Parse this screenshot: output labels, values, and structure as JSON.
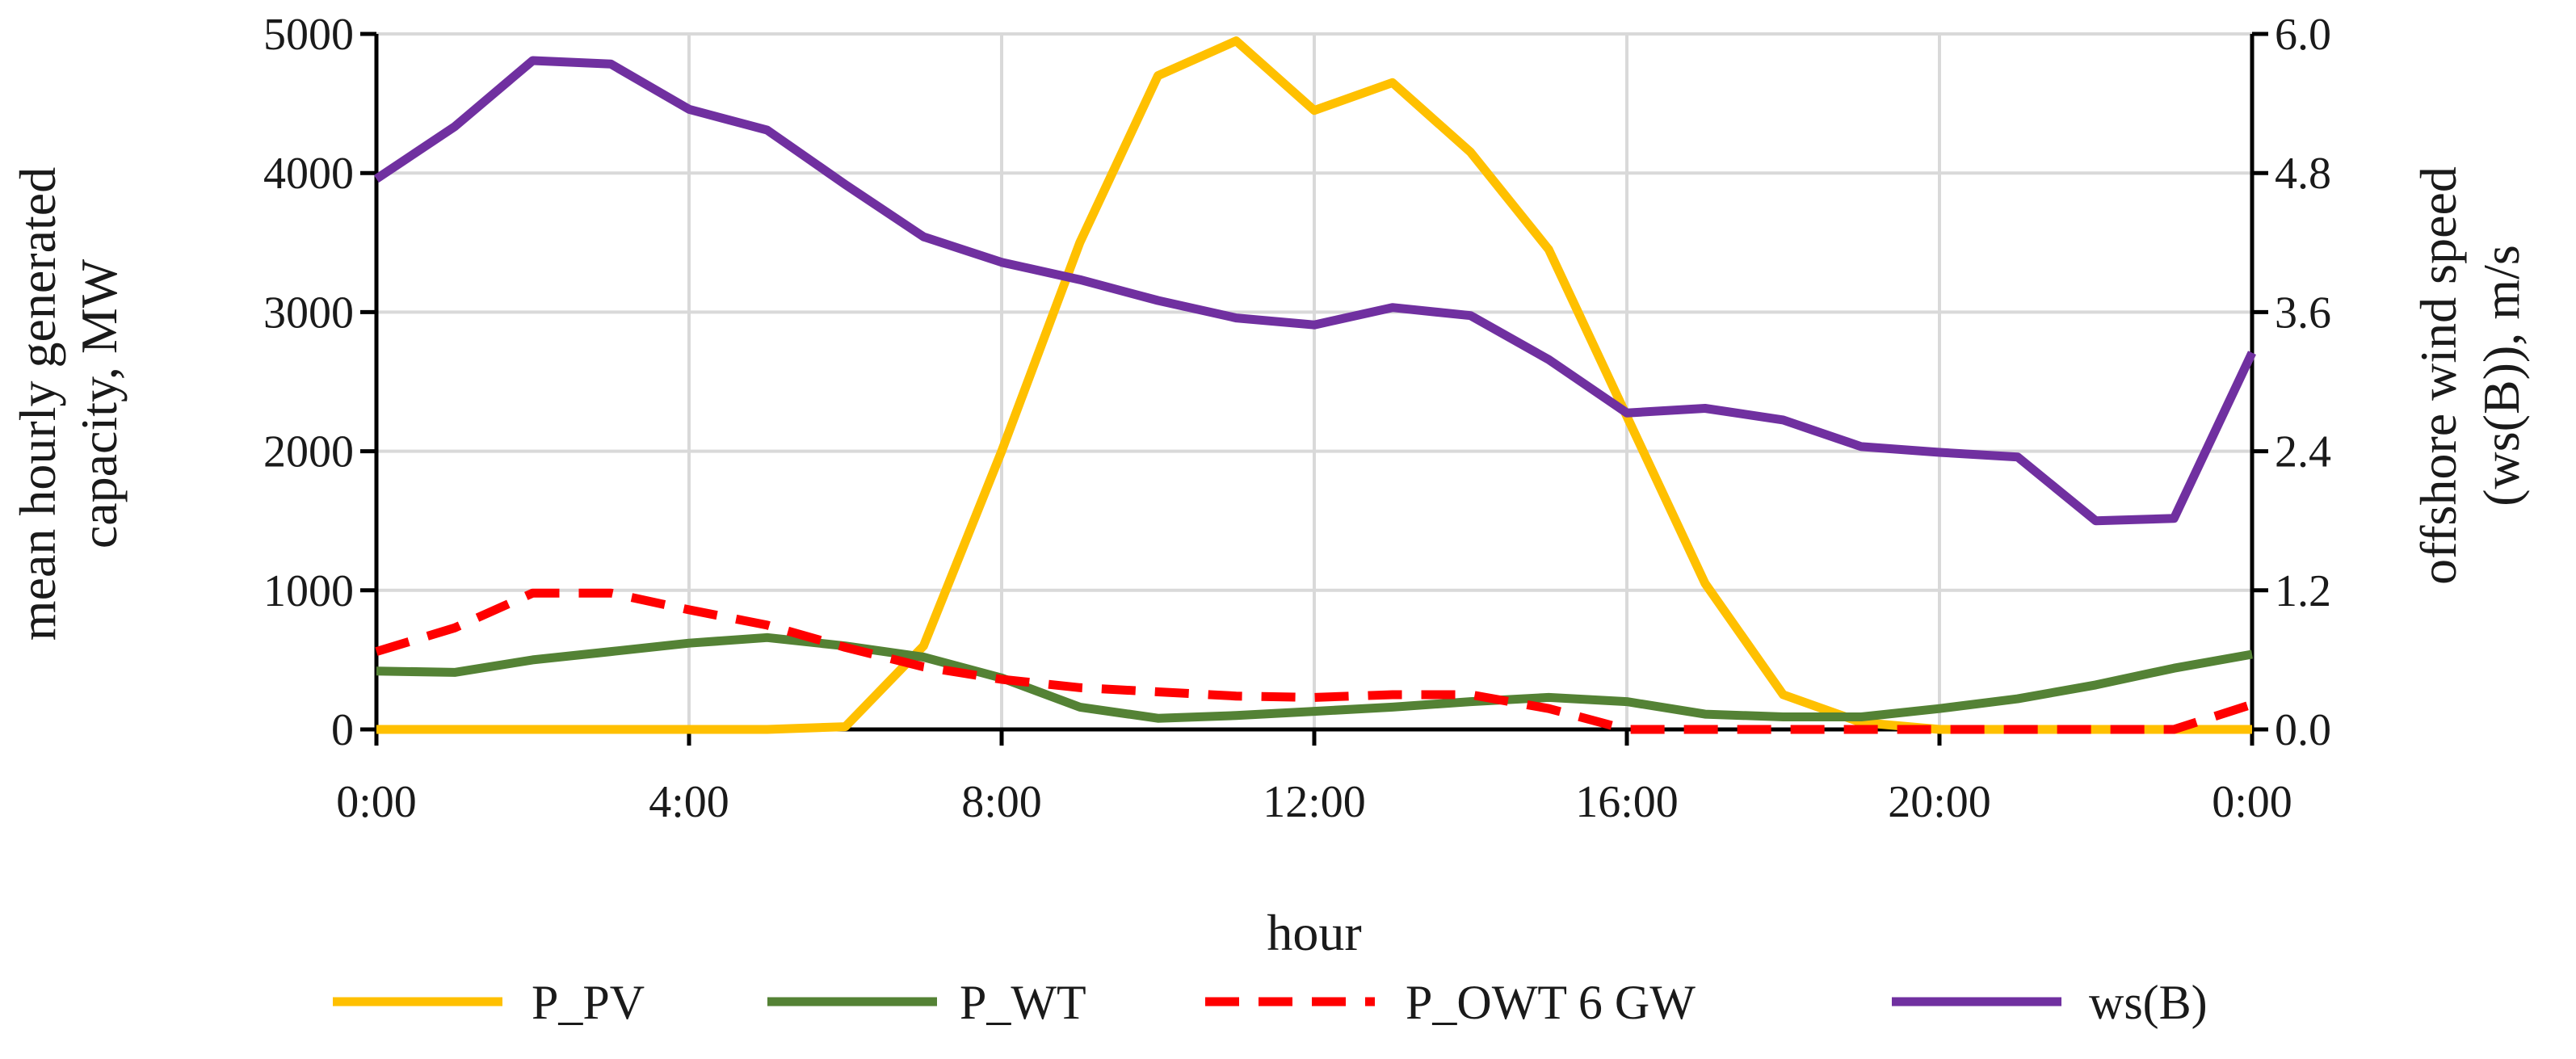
{
  "chart_data": {
    "type": "line",
    "x": [
      "0:00",
      "1:00",
      "2:00",
      "3:00",
      "4:00",
      "5:00",
      "6:00",
      "7:00",
      "8:00",
      "9:00",
      "10:00",
      "11:00",
      "12:00",
      "13:00",
      "14:00",
      "15:00",
      "16:00",
      "17:00",
      "18:00",
      "19:00",
      "20:00",
      "21:00",
      "22:00",
      "23:00",
      "0:00"
    ],
    "x_tick_labels": [
      "0:00",
      "4:00",
      "8:00",
      "12:00",
      "16:00",
      "20:00",
      "0:00"
    ],
    "xlabel": "hour",
    "ylabel_left_line1": "mean hourly generated",
    "ylabel_left_line2": "capacity, MW",
    "ylabel_right_line1": "offshore wind speed",
    "ylabel_right_line2": "(ws(B)), m/s",
    "ylim_left": [
      0,
      5000
    ],
    "ylim_right": [
      0,
      6
    ],
    "y_left_ticks": [
      "0",
      "1000",
      "2000",
      "3000",
      "4000",
      "5000"
    ],
    "y_right_ticks": [
      "0.0",
      "1.2",
      "2.4",
      "3.6",
      "4.8",
      "6.0"
    ],
    "grid": true,
    "legend_position": "bottom",
    "series": [
      {
        "name": "P_PV",
        "axis": "left",
        "color": "#FFC000",
        "dash": "solid",
        "values": [
          0,
          0,
          0,
          0,
          0,
          0,
          20,
          600,
          2000,
          3500,
          4700,
          4950,
          4450,
          4650,
          4150,
          3450,
          2250,
          1050,
          250,
          50,
          0,
          0,
          0,
          0,
          0
        ]
      },
      {
        "name": "P_WT",
        "axis": "left",
        "color": "#548235",
        "dash": "solid",
        "values": [
          420,
          410,
          500,
          560,
          620,
          660,
          600,
          520,
          370,
          160,
          80,
          100,
          130,
          160,
          200,
          230,
          200,
          110,
          90,
          90,
          150,
          220,
          320,
          440,
          540
        ]
      },
      {
        "name": "P_OWT 6 GW",
        "axis": "left",
        "color": "#FF0000",
        "dash": "dashed",
        "values": [
          560,
          730,
          980,
          980,
          860,
          750,
          590,
          450,
          360,
          300,
          270,
          240,
          230,
          250,
          250,
          150,
          0,
          0,
          0,
          0,
          0,
          0,
          0,
          0,
          180
        ]
      },
      {
        "name": "ws(B)",
        "axis": "right",
        "color": "#7030A0",
        "dash": "solid",
        "values": [
          4.75,
          5.2,
          5.77,
          5.74,
          5.35,
          5.17,
          4.7,
          4.25,
          4.03,
          3.88,
          3.7,
          3.55,
          3.49,
          3.64,
          3.57,
          3.19,
          2.73,
          2.77,
          2.67,
          2.44,
          2.39,
          2.35,
          1.8,
          1.82,
          3.25
        ]
      }
    ]
  }
}
